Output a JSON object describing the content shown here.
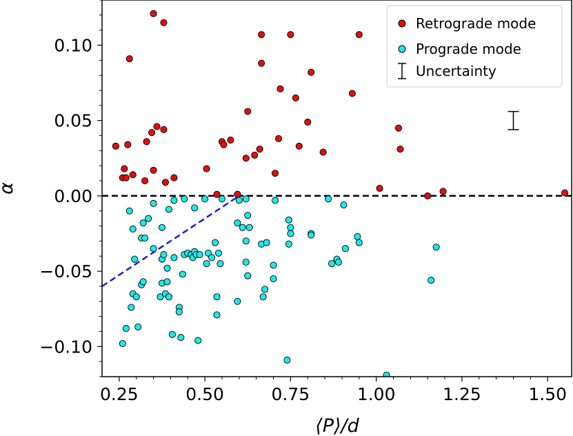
{
  "chart_data": {
    "type": "scatter",
    "xlabel": "⟨P⟩/d",
    "ylabel": "α",
    "xlim": [
      0.2,
      1.57
    ],
    "ylim": [
      -0.12,
      0.13
    ],
    "x_ticks": [
      0.25,
      0.5,
      0.75,
      1.0,
      1.25,
      1.5
    ],
    "x_tick_labels": [
      "0.25",
      "0.50",
      "0.75",
      "1.00",
      "1.25",
      "1.50"
    ],
    "y_ticks": [
      0.1,
      0.05,
      0.0,
      -0.05,
      -0.1
    ],
    "y_tick_labels": [
      "0.10",
      "0.05",
      "0.00",
      "−0.05",
      "−0.10"
    ],
    "grid": false,
    "legend_position": "top-right",
    "reference_lines": [
      {
        "kind": "horizontal",
        "y": 0.0,
        "style": "dashed",
        "color": "#000000"
      },
      {
        "kind": "segment",
        "x": [
          0.2,
          0.6
        ],
        "y": [
          -0.06,
          0.0
        ],
        "style": "dashed",
        "color": "#1a1ae6"
      }
    ],
    "uncertainty_bar": {
      "x": 1.4,
      "y_low": 0.044,
      "y_high": 0.056
    },
    "series": [
      {
        "name": "Retrograde mode",
        "color": "#e01010",
        "points": [
          [
            0.24,
            0.033
          ],
          [
            0.26,
            0.012
          ],
          [
            0.265,
            0.018
          ],
          [
            0.27,
            0.012
          ],
          [
            0.275,
            0.034
          ],
          [
            0.28,
            0.091
          ],
          [
            0.29,
            0.014
          ],
          [
            0.325,
            0.01
          ],
          [
            0.33,
            0.036
          ],
          [
            0.345,
            0.042
          ],
          [
            0.35,
            0.017
          ],
          [
            0.35,
            0.121
          ],
          [
            0.36,
            0.046
          ],
          [
            0.38,
            0.044
          ],
          [
            0.38,
            0.115
          ],
          [
            0.385,
            0.009
          ],
          [
            0.41,
            0.012
          ],
          [
            0.505,
            0.018
          ],
          [
            0.535,
            0.001
          ],
          [
            0.55,
            0.036
          ],
          [
            0.555,
            0.034
          ],
          [
            0.575,
            0.037
          ],
          [
            0.595,
            0.001
          ],
          [
            0.62,
            0.025
          ],
          [
            0.625,
            0.056
          ],
          [
            0.645,
            0.027
          ],
          [
            0.66,
            0.031
          ],
          [
            0.665,
            0.088
          ],
          [
            0.665,
            0.107
          ],
          [
            0.705,
            0.015
          ],
          [
            0.715,
            0.038
          ],
          [
            0.72,
            0.071
          ],
          [
            0.75,
            0.107
          ],
          [
            0.765,
            0.065
          ],
          [
            0.775,
            0.033
          ],
          [
            0.8,
            0.049
          ],
          [
            0.81,
            0.082
          ],
          [
            0.845,
            0.029
          ],
          [
            0.93,
            0.068
          ],
          [
            0.95,
            0.107
          ],
          [
            1.01,
            0.005
          ],
          [
            1.065,
            0.045
          ],
          [
            1.07,
            0.031
          ],
          [
            1.15,
            0.0
          ],
          [
            1.195,
            0.003
          ],
          [
            1.55,
            0.002
          ]
        ]
      },
      {
        "name": "Prograde mode",
        "color": "#1ee8e8",
        "points": [
          [
            0.26,
            -0.098
          ],
          [
            0.27,
            -0.088
          ],
          [
            0.28,
            -0.01
          ],
          [
            0.285,
            -0.074
          ],
          [
            0.29,
            -0.022
          ],
          [
            0.29,
            -0.065
          ],
          [
            0.295,
            -0.042
          ],
          [
            0.3,
            -0.067
          ],
          [
            0.305,
            -0.087
          ],
          [
            0.315,
            -0.059
          ],
          [
            0.315,
            -0.028
          ],
          [
            0.32,
            -0.018
          ],
          [
            0.32,
            -0.057
          ],
          [
            0.325,
            -0.028
          ],
          [
            0.335,
            -0.015
          ],
          [
            0.35,
            -0.005
          ],
          [
            0.35,
            -0.035
          ],
          [
            0.37,
            -0.067
          ],
          [
            0.375,
            -0.058
          ],
          [
            0.375,
            -0.042
          ],
          [
            0.375,
            -0.021
          ],
          [
            0.38,
            -0.039
          ],
          [
            0.385,
            -0.065
          ],
          [
            0.39,
            -0.057
          ],
          [
            0.39,
            -0.048
          ],
          [
            0.395,
            -0.009
          ],
          [
            0.395,
            -0.067
          ],
          [
            0.405,
            -0.092
          ],
          [
            0.41,
            -0.041
          ],
          [
            0.41,
            -0.003
          ],
          [
            0.425,
            -0.074
          ],
          [
            0.425,
            -0.077
          ],
          [
            0.43,
            -0.094
          ],
          [
            0.435,
            -0.052
          ],
          [
            0.44,
            -0.002
          ],
          [
            0.44,
            -0.039
          ],
          [
            0.45,
            -0.038
          ],
          [
            0.46,
            -0.039
          ],
          [
            0.465,
            -0.041
          ],
          [
            0.47,
            -0.037
          ],
          [
            0.47,
            -0.008
          ],
          [
            0.475,
            -0.039
          ],
          [
            0.48,
            -0.096
          ],
          [
            0.485,
            -0.039
          ],
          [
            0.5,
            -0.002
          ],
          [
            0.505,
            -0.045
          ],
          [
            0.51,
            -0.038
          ],
          [
            0.52,
            -0.041
          ],
          [
            0.53,
            -0.031
          ],
          [
            0.535,
            -0.067
          ],
          [
            0.535,
            -0.079
          ],
          [
            0.54,
            -0.038
          ],
          [
            0.545,
            -0.045
          ],
          [
            0.55,
            -0.002
          ],
          [
            0.595,
            -0.018
          ],
          [
            0.595,
            -0.07
          ],
          [
            0.6,
            -0.003
          ],
          [
            0.61,
            -0.021
          ],
          [
            0.62,
            -0.002
          ],
          [
            0.62,
            -0.03
          ],
          [
            0.62,
            -0.044
          ],
          [
            0.625,
            -0.053
          ],
          [
            0.625,
            -0.013
          ],
          [
            0.63,
            -0.021
          ],
          [
            0.665,
            -0.032
          ],
          [
            0.67,
            -0.067
          ],
          [
            0.675,
            -0.062
          ],
          [
            0.68,
            -0.031
          ],
          [
            0.7,
            -0.055
          ],
          [
            0.7,
            -0.046
          ],
          [
            0.705,
            -0.003
          ],
          [
            0.74,
            -0.109
          ],
          [
            0.745,
            -0.032
          ],
          [
            0.745,
            -0.016
          ],
          [
            0.75,
            -0.025
          ],
          [
            0.75,
            -0.021
          ],
          [
            0.81,
            -0.025
          ],
          [
            0.81,
            -0.026
          ],
          [
            0.86,
            -0.002
          ],
          [
            0.87,
            -0.045
          ],
          [
            0.885,
            -0.042
          ],
          [
            0.89,
            -0.044
          ],
          [
            0.905,
            -0.006
          ],
          [
            0.91,
            -0.035
          ],
          [
            0.945,
            -0.027
          ],
          [
            0.95,
            -0.031
          ],
          [
            1.03,
            -0.119
          ],
          [
            1.16,
            -0.056
          ],
          [
            1.175,
            -0.034
          ]
        ]
      }
    ]
  },
  "legend": {
    "entries": [
      "Retrograde mode",
      "Prograde mode",
      "Uncertainty"
    ]
  }
}
